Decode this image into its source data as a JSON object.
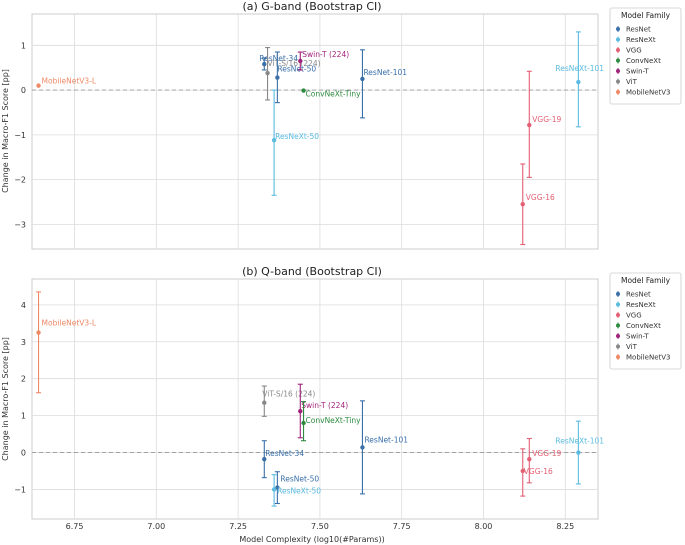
{
  "families": [
    {
      "name": "ResNet",
      "color": "#3a6fa8"
    },
    {
      "name": "ResNeXt",
      "color": "#5bbbe0"
    },
    {
      "name": "VGG",
      "color": "#e35f73"
    },
    {
      "name": "ConvNeXt",
      "color": "#2d8a3e"
    },
    {
      "name": "Swin-T",
      "color": "#a0227a"
    },
    {
      "name": "ViT",
      "color": "#888888"
    },
    {
      "name": "MobileNetV3",
      "color": "#ee8966"
    }
  ],
  "legend_title": "Model Family",
  "ylabel": "Change in Macro-F1 Score [pp]",
  "xlabel": "Model Complexity (log10(#Params))",
  "chart_data": [
    {
      "type": "scatter",
      "title": "(a) G-band (Bootstrap CI)",
      "xlim": [
        6.62,
        8.35
      ],
      "ylim": [
        -3.55,
        1.7
      ],
      "xticks": [
        6.75,
        7.0,
        7.25,
        7.5,
        7.75,
        8.0,
        8.25
      ],
      "yticks": [
        -3,
        -2,
        -1,
        0,
        1
      ],
      "ytick_labels": [
        "−3",
        "−2",
        "−1",
        "0",
        "1"
      ],
      "legend": "outside-right",
      "points": [
        {
          "label": "MobileNetV3-L",
          "family": "MobileNetV3",
          "x": 6.64,
          "y": 0.1,
          "lo": 0.1,
          "hi": 0.1
        },
        {
          "label": "ResNet-34",
          "family": "ResNet",
          "x": 7.33,
          "y": 0.58,
          "lo": 0.45,
          "hi": 0.72
        },
        {
          "label": "ViT-S/16 (224)",
          "family": "ViT",
          "x": 7.34,
          "y": 0.38,
          "lo": -0.22,
          "hi": 0.95
        },
        {
          "label": "ResNet-50",
          "family": "ResNet",
          "x": 7.37,
          "y": 0.28,
          "lo": -0.28,
          "hi": 0.85
        },
        {
          "label": "ResNeXt-50",
          "family": "ResNeXt",
          "x": 7.36,
          "y": -1.12,
          "lo": -2.35,
          "hi": 0.0
        },
        {
          "label": "Swin-T (224)",
          "family": "Swin-T",
          "x": 7.44,
          "y": 0.65,
          "lo": 0.45,
          "hi": 0.85
        },
        {
          "label": "ConvNeXt-Tiny",
          "family": "ConvNeXt",
          "x": 7.45,
          "y": -0.01,
          "lo": -0.01,
          "hi": -0.01
        },
        {
          "label": "ResNet-101",
          "family": "ResNet",
          "x": 7.63,
          "y": 0.25,
          "lo": -0.62,
          "hi": 0.9
        },
        {
          "label": "VGG-19",
          "family": "VGG",
          "x": 8.14,
          "y": -0.78,
          "lo": -1.95,
          "hi": 0.42
        },
        {
          "label": "VGG-16",
          "family": "VGG",
          "x": 8.12,
          "y": -2.55,
          "lo": -3.45,
          "hi": -1.65
        },
        {
          "label": "ResNeXt-101",
          "family": "ResNeXt",
          "x": 8.29,
          "y": 0.18,
          "lo": -0.82,
          "hi": 1.3
        }
      ]
    },
    {
      "type": "scatter",
      "title": "(b) Q-band (Bootstrap CI)",
      "xlim": [
        6.62,
        8.35
      ],
      "ylim": [
        -1.8,
        4.7
      ],
      "xticks": [
        6.75,
        7.0,
        7.25,
        7.5,
        7.75,
        8.0,
        8.25
      ],
      "xtick_labels": [
        "6.75",
        "7.00",
        "7.25",
        "7.50",
        "7.75",
        "8.00",
        "8.25"
      ],
      "yticks": [
        -1,
        0,
        1,
        2,
        3,
        4
      ],
      "ytick_labels": [
        "−1",
        "0",
        "1",
        "2",
        "3",
        "4"
      ],
      "legend": "outside-right",
      "points": [
        {
          "label": "MobileNetV3-L",
          "family": "MobileNetV3",
          "x": 6.64,
          "y": 3.25,
          "lo": 1.62,
          "hi": 4.35
        },
        {
          "label": "ViT-S/16 (224)",
          "family": "ViT",
          "x": 7.33,
          "y": 1.35,
          "lo": 0.98,
          "hi": 1.8
        },
        {
          "label": "ResNet-34",
          "family": "ResNet",
          "x": 7.33,
          "y": -0.18,
          "lo": -0.68,
          "hi": 0.32
        },
        {
          "label": "ResNet-50",
          "family": "ResNet",
          "x": 7.37,
          "y": -0.95,
          "lo": -1.38,
          "hi": -0.52
        },
        {
          "label": "ResNeXt-50",
          "family": "ResNeXt",
          "x": 7.36,
          "y": -1.0,
          "lo": -1.45,
          "hi": -0.6
        },
        {
          "label": "Swin-T (224)",
          "family": "Swin-T",
          "x": 7.44,
          "y": 1.12,
          "lo": 0.4,
          "hi": 1.85
        },
        {
          "label": "ConvNeXt-Tiny",
          "family": "ConvNeXt",
          "x": 7.45,
          "y": 0.8,
          "lo": 0.32,
          "hi": 1.38
        },
        {
          "label": "ResNet-101",
          "family": "ResNet",
          "x": 7.63,
          "y": 0.14,
          "lo": -1.12,
          "hi": 1.4
        },
        {
          "label": "VGG-19",
          "family": "VGG",
          "x": 8.14,
          "y": -0.18,
          "lo": -0.82,
          "hi": 0.38
        },
        {
          "label": "VGG-16",
          "family": "VGG",
          "x": 8.12,
          "y": -0.5,
          "lo": -1.18,
          "hi": 0.1
        },
        {
          "label": "ResNeXt-101",
          "family": "ResNeXt",
          "x": 8.29,
          "y": 0.0,
          "lo": -0.85,
          "hi": 0.85
        }
      ]
    }
  ]
}
